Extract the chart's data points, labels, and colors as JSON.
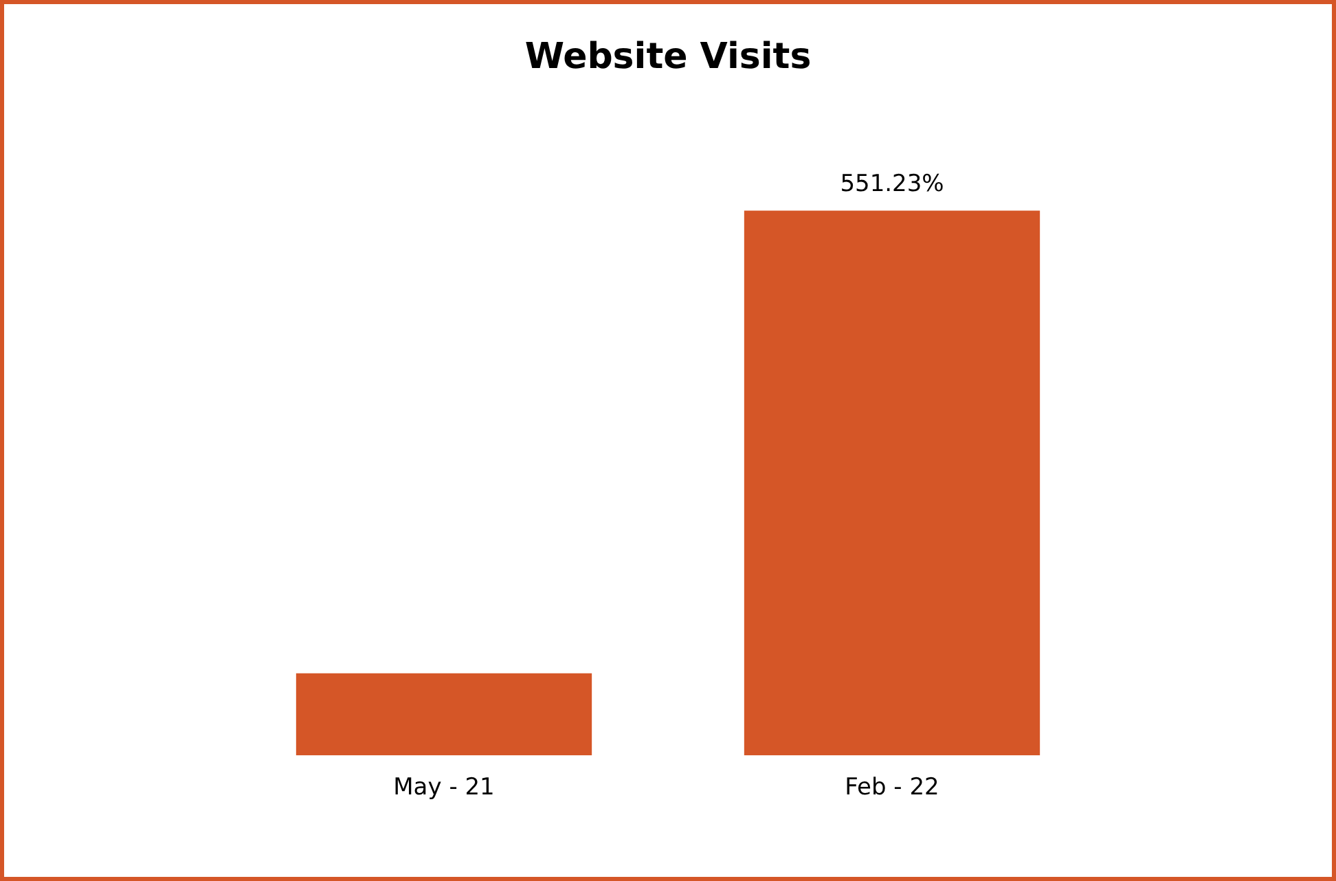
{
  "chart_data": {
    "type": "bar",
    "title": "Website Visits",
    "categories": [
      "May - 21",
      "Feb - 22"
    ],
    "values": [
      83,
      551.23
    ],
    "color": "#d55627",
    "value_labels": [
      null,
      "551.23%"
    ],
    "grid": false,
    "legend": false
  }
}
